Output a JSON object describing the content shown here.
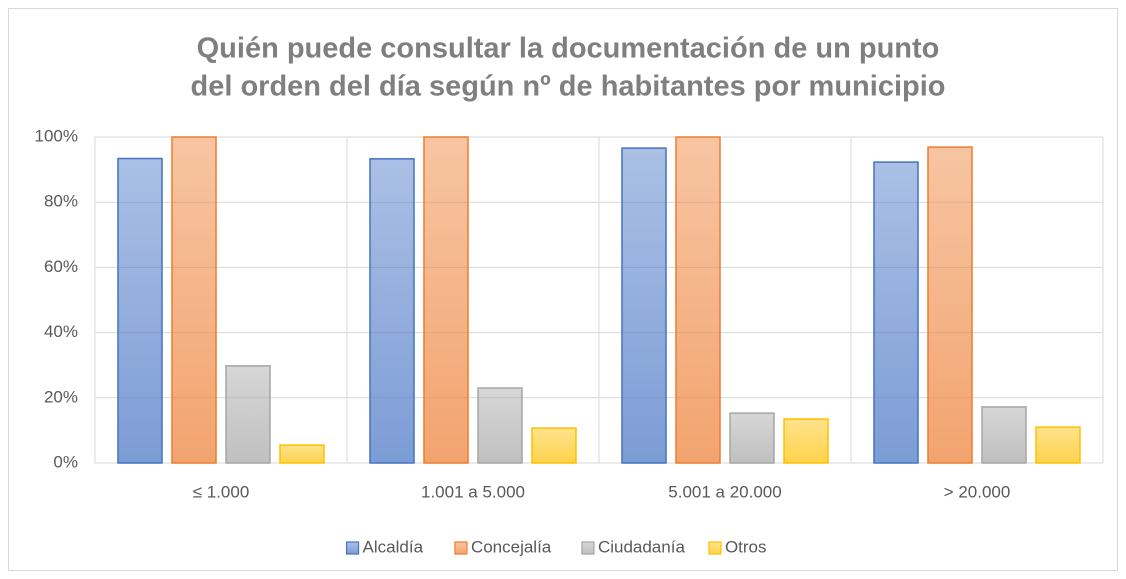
{
  "chart_data": {
    "type": "bar",
    "title": [
      "Quién puede consultar la documentación de un punto",
      "del orden del día según nº de habitantes por municipio"
    ],
    "categories": [
      "≤ 1.000",
      "1.001 a 5.000",
      "5.001 a 20.000",
      "> 20.000"
    ],
    "series": [
      {
        "name": "Alcaldía",
        "color": "#4472c4",
        "values": [
          93.4,
          93.3,
          96.6,
          92.3
        ]
      },
      {
        "name": "Concejalía",
        "color": "#ed7d31",
        "values": [
          100,
          100,
          100,
          96.9
        ]
      },
      {
        "name": "Ciudadanía",
        "color": "#a5a5a5",
        "values": [
          29.8,
          23,
          15.3,
          17.2
        ]
      },
      {
        "name": "Otros",
        "color": "#ffc000",
        "values": [
          5.5,
          10.7,
          13.5,
          11
        ]
      }
    ],
    "ylim": [
      0,
      100
    ],
    "yticks": [
      {
        "value": 0,
        "label": "0%"
      },
      {
        "value": 20,
        "label": "20%"
      },
      {
        "value": 40,
        "label": "40%"
      },
      {
        "value": 60,
        "label": "60%"
      },
      {
        "value": 80,
        "label": "80%"
      },
      {
        "value": 100,
        "label": "100%"
      }
    ],
    "grid": true,
    "legend": "bottom"
  }
}
